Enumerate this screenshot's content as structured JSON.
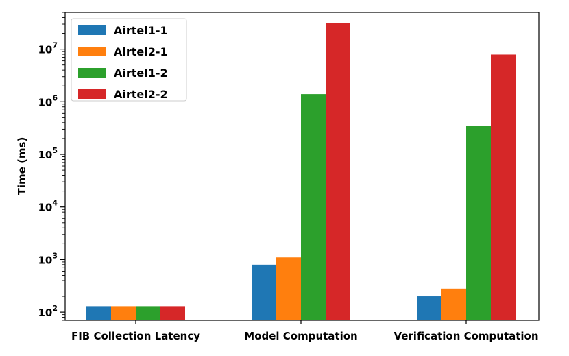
{
  "chart_data": {
    "type": "bar",
    "categories": [
      "FIB Collection Latency",
      "Model Computation",
      "Verification Computation"
    ],
    "series": [
      {
        "name": "Airtel1-1",
        "color": "#1f77b4",
        "values": [
          130,
          800,
          200
        ]
      },
      {
        "name": "Airtel2-1",
        "color": "#ff7f0e",
        "values": [
          130,
          1100,
          280
        ]
      },
      {
        "name": "Airtel1-2",
        "color": "#2ca02c",
        "values": [
          130,
          1400000,
          350000
        ]
      },
      {
        "name": "Airtel2-2",
        "color": "#d62728",
        "values": [
          130,
          31000000,
          7900000
        ]
      }
    ],
    "xlabel": "",
    "ylabel": "Time (ms)",
    "yscale": "log",
    "ylim": [
      70,
      50000000
    ],
    "yticks": [
      {
        "base": "10",
        "exp": "2",
        "value": 100
      },
      {
        "base": "10",
        "exp": "3",
        "value": 1000
      },
      {
        "base": "10",
        "exp": "4",
        "value": 10000
      },
      {
        "base": "10",
        "exp": "5",
        "value": 100000
      },
      {
        "base": "10",
        "exp": "6",
        "value": 1000000
      },
      {
        "base": "10",
        "exp": "7",
        "value": 10000000
      }
    ],
    "grid": false,
    "legend": "top-left"
  }
}
